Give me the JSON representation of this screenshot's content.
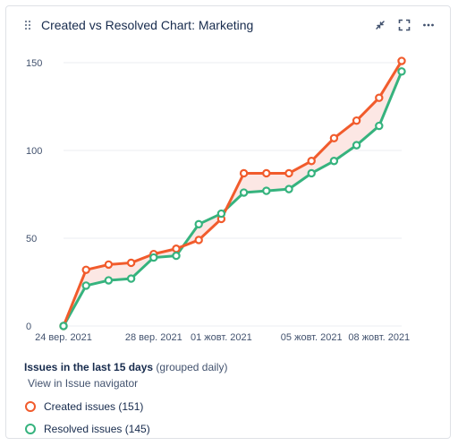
{
  "gadget": {
    "title": "Created vs Resolved Chart: Marketing",
    "icons": {
      "drag": "drag-handle-icon",
      "minimize": "minimize-icon",
      "fullscreen": "fullscreen-icon",
      "more": "more-icon"
    }
  },
  "chart_data": {
    "type": "area",
    "x": [
      "24 вер. 2021",
      "25 вер. 2021",
      "26 вер. 2021",
      "27 вер. 2021",
      "28 вер. 2021",
      "29 вер. 2021",
      "30 вер. 2021",
      "01 жовт. 2021",
      "02 жовт. 2021",
      "03 жовт. 2021",
      "04 жовт. 2021",
      "05 жовт. 2021",
      "06 жовт. 2021",
      "07 жовт. 2021",
      "08 жовт. 2021",
      "09 жовт. 2021"
    ],
    "x_tick_labels": [
      "24 вер. 2021",
      "28 вер. 2021",
      "01 жовт. 2021",
      "05 жовт. 2021",
      "08 жовт. 2021"
    ],
    "x_tick_index": [
      0,
      4,
      7,
      11,
      14
    ],
    "series": [
      {
        "name": "Created issues",
        "color": "#f15b2c",
        "values": [
          0,
          32,
          35,
          36,
          41,
          44,
          49,
          61,
          87,
          87,
          87,
          94,
          107,
          117,
          130,
          151
        ]
      },
      {
        "name": "Resolved issues",
        "color": "#36b37e",
        "values": [
          0,
          23,
          26,
          27,
          39,
          40,
          58,
          64,
          76,
          77,
          78,
          87,
          94,
          103,
          114,
          145
        ]
      }
    ],
    "fill_color": "#fbe3df",
    "ylim": [
      0,
      150
    ],
    "y_ticks": [
      0,
      50,
      100,
      150
    ],
    "grid": true,
    "xlabel": "",
    "ylabel": ""
  },
  "legend": {
    "summary_bold": "Issues in the last 15 days",
    "summary_rest": "(grouped daily)",
    "nav_link": "View in Issue navigator",
    "items": [
      {
        "label": "Created issues (151)",
        "color": "#f15b2c"
      },
      {
        "label": "Resolved issues (145)",
        "color": "#36b37e"
      }
    ]
  }
}
